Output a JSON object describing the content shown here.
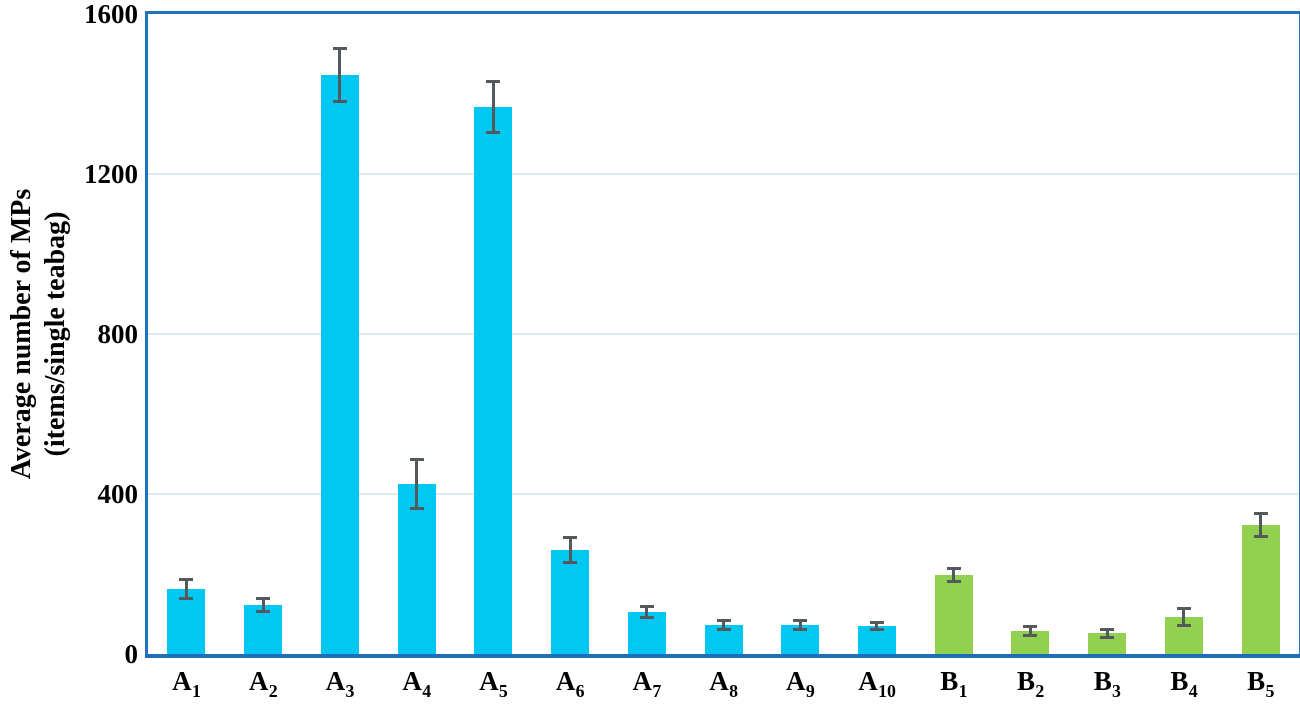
{
  "chart_data": {
    "type": "bar",
    "title": "",
    "xlabel": "",
    "ylabel": "Average number of MPs (items/single teabag)",
    "ylabel_lines": [
      "Average number of MPs",
      "(items/single teabag)"
    ],
    "ylim": [
      0,
      1600
    ],
    "yticks": [
      0,
      400,
      800,
      1200,
      1600
    ],
    "gridlines_at": [
      400,
      800,
      1200
    ],
    "grid": "horizontal-only",
    "legend_position": "none",
    "error_bars": true,
    "categories": [
      {
        "base": "A",
        "sub": "1",
        "group": "A"
      },
      {
        "base": "A",
        "sub": "2",
        "group": "A"
      },
      {
        "base": "A",
        "sub": "3",
        "group": "A"
      },
      {
        "base": "A",
        "sub": "4",
        "group": "A"
      },
      {
        "base": "A",
        "sub": "5",
        "group": "A"
      },
      {
        "base": "A",
        "sub": "6",
        "group": "A"
      },
      {
        "base": "A",
        "sub": "7",
        "group": "A"
      },
      {
        "base": "A",
        "sub": "8",
        "group": "A"
      },
      {
        "base": "A",
        "sub": "9",
        "group": "A"
      },
      {
        "base": "A",
        "sub": "10",
        "group": "A"
      },
      {
        "base": "B",
        "sub": "1",
        "group": "B"
      },
      {
        "base": "B",
        "sub": "2",
        "group": "B"
      },
      {
        "base": "B",
        "sub": "3",
        "group": "B"
      },
      {
        "base": "B",
        "sub": "4",
        "group": "B"
      },
      {
        "base": "B",
        "sub": "5",
        "group": "B"
      }
    ],
    "values": [
      163,
      122,
      1448,
      425,
      1368,
      260,
      105,
      73,
      73,
      70,
      198,
      57,
      52,
      92,
      322
    ],
    "errors": [
      20,
      12,
      62,
      58,
      60,
      28,
      10,
      8,
      8,
      5,
      13,
      8,
      6,
      17,
      25
    ],
    "group_colors": {
      "A": "#00C8F2",
      "B": "#92D050"
    }
  },
  "colors": {
    "background": "#FFFFFF",
    "axis_frame": "#2173BE",
    "axis_bottom": "#1E6DBC",
    "gridline": "#DDE9F6",
    "error_bar": "#54595E",
    "bar_cyan": "#00C8F2",
    "bar_green": "#92D050",
    "text": "#000000"
  }
}
